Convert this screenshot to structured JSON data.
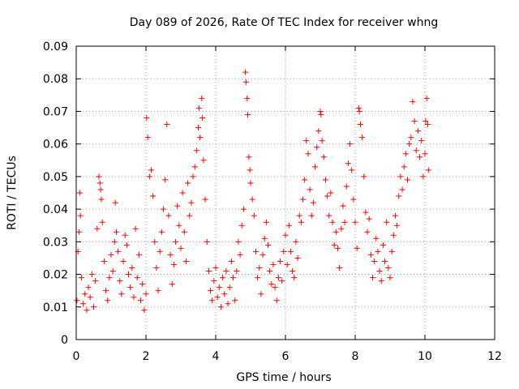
{
  "chart_data": {
    "type": "scatter",
    "title": "Day 089 of 2026, Rate Of TEC Index for receiver whng",
    "xlabel": "GPS time / hours",
    "ylabel": "ROTI / TECUs",
    "xlim": [
      0,
      12
    ],
    "ylim": [
      0,
      0.09
    ],
    "x_ticks": [
      0,
      2,
      4,
      6,
      8,
      10,
      12
    ],
    "y_ticks": [
      0,
      0.01,
      0.02,
      0.03,
      0.04,
      0.05,
      0.06,
      0.07,
      0.08,
      0.09
    ],
    "x_tick_labels": [
      "0",
      "2",
      "4",
      "6",
      "8",
      "10",
      "12"
    ],
    "y_tick_labels": [
      "0",
      "0.01",
      "0.02",
      "0.03",
      "0.04",
      "0.05",
      "0.06",
      "0.07",
      "0.08",
      "0.09"
    ],
    "grid": true,
    "marker": "+",
    "marker_color": "#ff0000",
    "series": [
      {
        "name": "ROTI",
        "points": [
          [
            0.02,
            0.012
          ],
          [
            0.05,
            0.027
          ],
          [
            0.08,
            0.033
          ],
          [
            0.1,
            0.045
          ],
          [
            0.12,
            0.038
          ],
          [
            0.15,
            0.019
          ],
          [
            0.2,
            0.011
          ],
          [
            0.25,
            0.014
          ],
          [
            0.3,
            0.009
          ],
          [
            0.35,
            0.016
          ],
          [
            0.4,
            0.013
          ],
          [
            0.45,
            0.02
          ],
          [
            0.5,
            0.01
          ],
          [
            0.55,
            0.018
          ],
          [
            0.6,
            0.034
          ],
          [
            0.65,
            0.05
          ],
          [
            0.68,
            0.048
          ],
          [
            0.7,
            0.046
          ],
          [
            0.72,
            0.043
          ],
          [
            0.75,
            0.036
          ],
          [
            0.8,
            0.024
          ],
          [
            0.85,
            0.015
          ],
          [
            0.9,
            0.012
          ],
          [
            0.95,
            0.019
          ],
          [
            1.0,
            0.026
          ],
          [
            1.05,
            0.021
          ],
          [
            1.1,
            0.03
          ],
          [
            1.12,
            0.042
          ],
          [
            1.15,
            0.033
          ],
          [
            1.2,
            0.027
          ],
          [
            1.25,
            0.018
          ],
          [
            1.3,
            0.014
          ],
          [
            1.35,
            0.024
          ],
          [
            1.4,
            0.032
          ],
          [
            1.45,
            0.029
          ],
          [
            1.5,
            0.02
          ],
          [
            1.55,
            0.016
          ],
          [
            1.6,
            0.022
          ],
          [
            1.65,
            0.013
          ],
          [
            1.7,
            0.034
          ],
          [
            1.75,
            0.019
          ],
          [
            1.8,
            0.026
          ],
          [
            1.85,
            0.012
          ],
          [
            1.9,
            0.017
          ],
          [
            1.95,
            0.009
          ],
          [
            2.0,
            0.014
          ],
          [
            2.02,
            0.068
          ],
          [
            2.05,
            0.062
          ],
          [
            2.1,
            0.05
          ],
          [
            2.15,
            0.052
          ],
          [
            2.2,
            0.044
          ],
          [
            2.25,
            0.03
          ],
          [
            2.3,
            0.022
          ],
          [
            2.35,
            0.015
          ],
          [
            2.4,
            0.027
          ],
          [
            2.45,
            0.033
          ],
          [
            2.5,
            0.04
          ],
          [
            2.55,
            0.049
          ],
          [
            2.6,
            0.066
          ],
          [
            2.65,
            0.038
          ],
          [
            2.7,
            0.026
          ],
          [
            2.75,
            0.017
          ],
          [
            2.8,
            0.023
          ],
          [
            2.85,
            0.03
          ],
          [
            2.9,
            0.041
          ],
          [
            2.95,
            0.035
          ],
          [
            3.0,
            0.028
          ],
          [
            3.05,
            0.045
          ],
          [
            3.1,
            0.033
          ],
          [
            3.15,
            0.024
          ],
          [
            3.2,
            0.048
          ],
          [
            3.25,
            0.038
          ],
          [
            3.3,
            0.042
          ],
          [
            3.35,
            0.05
          ],
          [
            3.4,
            0.053
          ],
          [
            3.45,
            0.058
          ],
          [
            3.5,
            0.065
          ],
          [
            3.52,
            0.071
          ],
          [
            3.55,
            0.062
          ],
          [
            3.6,
            0.074
          ],
          [
            3.62,
            0.068
          ],
          [
            3.65,
            0.055
          ],
          [
            3.7,
            0.043
          ],
          [
            3.75,
            0.03
          ],
          [
            3.8,
            0.021
          ],
          [
            3.85,
            0.015
          ],
          [
            3.9,
            0.012
          ],
          [
            3.95,
            0.018
          ],
          [
            4.0,
            0.022
          ],
          [
            4.05,
            0.013
          ],
          [
            4.1,
            0.016
          ],
          [
            4.15,
            0.01
          ],
          [
            4.2,
            0.019
          ],
          [
            4.25,
            0.014
          ],
          [
            4.3,
            0.021
          ],
          [
            4.35,
            0.011
          ],
          [
            4.4,
            0.016
          ],
          [
            4.45,
            0.024
          ],
          [
            4.5,
            0.019
          ],
          [
            4.55,
            0.012
          ],
          [
            4.6,
            0.021
          ],
          [
            4.65,
            0.03
          ],
          [
            4.7,
            0.026
          ],
          [
            4.75,
            0.035
          ],
          [
            4.8,
            0.04
          ],
          [
            4.85,
            0.082
          ],
          [
            4.87,
            0.079
          ],
          [
            4.9,
            0.074
          ],
          [
            4.92,
            0.069
          ],
          [
            4.95,
            0.056
          ],
          [
            4.98,
            0.052
          ],
          [
            5.0,
            0.048
          ],
          [
            5.05,
            0.043
          ],
          [
            5.1,
            0.038
          ],
          [
            5.15,
            0.027
          ],
          [
            5.2,
            0.019
          ],
          [
            5.25,
            0.022
          ],
          [
            5.3,
            0.014
          ],
          [
            5.35,
            0.026
          ],
          [
            5.4,
            0.031
          ],
          [
            5.45,
            0.036
          ],
          [
            5.5,
            0.029
          ],
          [
            5.55,
            0.021
          ],
          [
            5.6,
            0.017
          ],
          [
            5.65,
            0.023
          ],
          [
            5.7,
            0.016
          ],
          [
            5.75,
            0.012
          ],
          [
            5.8,
            0.019
          ],
          [
            5.85,
            0.024
          ],
          [
            5.9,
            0.018
          ],
          [
            5.95,
            0.027
          ],
          [
            6.0,
            0.032
          ],
          [
            6.05,
            0.023
          ],
          [
            6.1,
            0.035
          ],
          [
            6.15,
            0.027
          ],
          [
            6.2,
            0.021
          ],
          [
            6.25,
            0.019
          ],
          [
            6.3,
            0.03
          ],
          [
            6.35,
            0.025
          ],
          [
            6.4,
            0.038
          ],
          [
            6.45,
            0.036
          ],
          [
            6.5,
            0.043
          ],
          [
            6.55,
            0.049
          ],
          [
            6.6,
            0.061
          ],
          [
            6.65,
            0.057
          ],
          [
            6.7,
            0.046
          ],
          [
            6.75,
            0.038
          ],
          [
            6.8,
            0.042
          ],
          [
            6.85,
            0.053
          ],
          [
            6.9,
            0.059
          ],
          [
            6.95,
            0.064
          ],
          [
            7.0,
            0.07
          ],
          [
            7.02,
            0.069
          ],
          [
            7.05,
            0.061
          ],
          [
            7.1,
            0.056
          ],
          [
            7.15,
            0.049
          ],
          [
            7.2,
            0.044
          ],
          [
            7.25,
            0.038
          ],
          [
            7.3,
            0.045
          ],
          [
            7.35,
            0.036
          ],
          [
            7.4,
            0.029
          ],
          [
            7.45,
            0.033
          ],
          [
            7.5,
            0.028
          ],
          [
            7.55,
            0.022
          ],
          [
            7.6,
            0.034
          ],
          [
            7.65,
            0.041
          ],
          [
            7.7,
            0.036
          ],
          [
            7.75,
            0.047
          ],
          [
            7.8,
            0.054
          ],
          [
            7.85,
            0.06
          ],
          [
            7.9,
            0.052
          ],
          [
            7.95,
            0.043
          ],
          [
            8.0,
            0.036
          ],
          [
            8.05,
            0.028
          ],
          [
            8.1,
            0.071
          ],
          [
            8.12,
            0.07
          ],
          [
            8.15,
            0.066
          ],
          [
            8.2,
            0.062
          ],
          [
            8.25,
            0.05
          ],
          [
            8.3,
            0.039
          ],
          [
            8.35,
            0.033
          ],
          [
            8.4,
            0.037
          ],
          [
            8.45,
            0.026
          ],
          [
            8.5,
            0.019
          ],
          [
            8.55,
            0.024
          ],
          [
            8.6,
            0.031
          ],
          [
            8.65,
            0.027
          ],
          [
            8.7,
            0.021
          ],
          [
            8.75,
            0.018
          ],
          [
            8.8,
            0.029
          ],
          [
            8.85,
            0.024
          ],
          [
            8.9,
            0.036
          ],
          [
            8.95,
            0.022
          ],
          [
            9.0,
            0.019
          ],
          [
            9.05,
            0.027
          ],
          [
            9.1,
            0.032
          ],
          [
            9.15,
            0.038
          ],
          [
            9.2,
            0.035
          ],
          [
            9.25,
            0.044
          ],
          [
            9.3,
            0.05
          ],
          [
            9.35,
            0.046
          ],
          [
            9.4,
            0.053
          ],
          [
            9.45,
            0.057
          ],
          [
            9.5,
            0.049
          ],
          [
            9.55,
            0.06
          ],
          [
            9.6,
            0.062
          ],
          [
            9.65,
            0.073
          ],
          [
            9.7,
            0.067
          ],
          [
            9.75,
            0.058
          ],
          [
            9.8,
            0.064
          ],
          [
            9.85,
            0.056
          ],
          [
            9.9,
            0.061
          ],
          [
            9.95,
            0.05
          ],
          [
            10.0,
            0.057
          ],
          [
            10.02,
            0.067
          ],
          [
            10.05,
            0.074
          ],
          [
            10.08,
            0.066
          ],
          [
            10.1,
            0.052
          ]
        ]
      }
    ]
  }
}
